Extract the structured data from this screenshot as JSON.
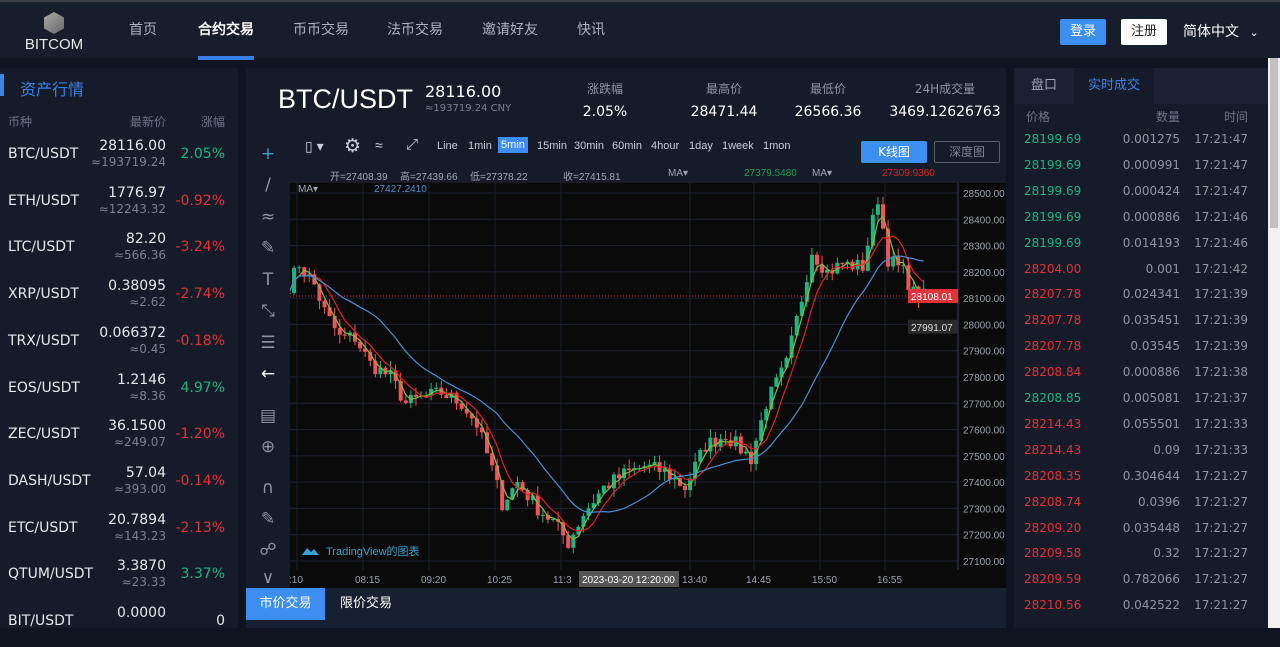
{
  "header": {
    "logo": "BITCOM",
    "nav": [
      "首页",
      "合约交易",
      "币币交易",
      "法币交易",
      "邀请好友",
      "快讯"
    ],
    "active_nav": 1,
    "login": "登录",
    "register": "注册",
    "language": "简体中文"
  },
  "left": {
    "title": "资产行情",
    "cols": [
      "币种",
      "最新价",
      "涨幅"
    ],
    "rows": [
      {
        "sym": "BTC/USDT",
        "price": "28116.00",
        "cny": "≈193719.24",
        "chg": "2.05%",
        "dir": "up"
      },
      {
        "sym": "ETH/USDT",
        "price": "1776.97",
        "cny": "≈12243.32",
        "chg": "-0.92%",
        "dir": "dn"
      },
      {
        "sym": "LTC/USDT",
        "price": "82.20",
        "cny": "≈566.36",
        "chg": "-3.24%",
        "dir": "dn"
      },
      {
        "sym": "XRP/USDT",
        "price": "0.38095",
        "cny": "≈2.62",
        "chg": "-2.74%",
        "dir": "dn"
      },
      {
        "sym": "TRX/USDT",
        "price": "0.066372",
        "cny": "≈0.45",
        "chg": "-0.18%",
        "dir": "dn"
      },
      {
        "sym": "EOS/USDT",
        "price": "1.2146",
        "cny": "≈8.36",
        "chg": "4.97%",
        "dir": "up"
      },
      {
        "sym": "ZEC/USDT",
        "price": "36.1500",
        "cny": "≈249.07",
        "chg": "-1.20%",
        "dir": "dn"
      },
      {
        "sym": "DASH/USDT",
        "price": "57.04",
        "cny": "≈393.00",
        "chg": "-0.14%",
        "dir": "dn"
      },
      {
        "sym": "ETC/USDT",
        "price": "20.7894",
        "cny": "≈143.23",
        "chg": "-2.13%",
        "dir": "dn"
      },
      {
        "sym": "QTUM/USDT",
        "price": "3.3870",
        "cny": "≈23.33",
        "chg": "3.37%",
        "dir": "up"
      },
      {
        "sym": "BIT/USDT",
        "price": "0.0000",
        "cny": "",
        "chg": "0",
        "dir": "none"
      }
    ]
  },
  "ticker": {
    "symbol": "BTC/USDT",
    "price": "28116.00",
    "cny": "≈193719.24 CNY",
    "stats": [
      {
        "label": "涨跌幅",
        "value": "2.05%"
      },
      {
        "label": "最高价",
        "value": "28471.44"
      },
      {
        "label": "最低价",
        "value": "26566.36"
      },
      {
        "label": "24H成交量",
        "value": "3469.12626763"
      }
    ]
  },
  "toolbar": {
    "intervals": [
      "Line",
      "1min",
      "5min",
      "15min",
      "30min",
      "60min",
      "4hour",
      "1day",
      "1week",
      "1mon"
    ],
    "selected": "5min",
    "kline": "K线图",
    "depth": "深度图"
  },
  "legend": {
    "open": "开=27408.39",
    "high": "高=27439.66",
    "low": "低=27378.22",
    "close": "收=27415.81",
    "ma": "MA▾",
    "ma1": "27379.5480",
    "ma2": "27309.9360",
    "ma3": "27427.2410"
  },
  "chart_data": {
    "type": "candlestick",
    "interval": "5min",
    "ylim": [
      27050,
      28550
    ],
    "yticks": [
      "28500.00",
      "28400.00",
      "28300.00",
      "28200.00",
      "28100.00",
      "28000.00",
      "27900.00",
      "27800.00",
      "27700.00",
      "27600.00",
      "27500.00",
      "27400.00",
      "27300.00",
      "27200.00",
      "27100.00"
    ],
    "xticks": [
      ":10",
      "08:15",
      "09:20",
      "10:25",
      "11:3",
      "13:40",
      "14:45",
      "15:50",
      "16:55"
    ],
    "crosshair_time": "2023-03-20 12:20:00",
    "last_price": "28108.01",
    "crosshair_price": "27991.07",
    "watermark": "TradingView的图表",
    "close_path": [
      [
        "07:10",
        28150
      ],
      [
        "07:20",
        28230
      ],
      [
        "07:35",
        28150
      ],
      [
        "07:45",
        28050
      ],
      [
        "08:00",
        27950
      ],
      [
        "08:15",
        27950
      ],
      [
        "08:30",
        27850
      ],
      [
        "08:50",
        27800
      ],
      [
        "09:05",
        27700
      ],
      [
        "09:20",
        27720
      ],
      [
        "09:40",
        27740
      ],
      [
        "10:00",
        27700
      ],
      [
        "10:15",
        27620
      ],
      [
        "10:30",
        27450
      ],
      [
        "10:40",
        27320
      ],
      [
        "10:55",
        27400
      ],
      [
        "11:15",
        27300
      ],
      [
        "11:30",
        27250
      ],
      [
        "11:45",
        27170
      ],
      [
        "12:00",
        27280
      ],
      [
        "12:20",
        27380
      ],
      [
        "12:40",
        27430
      ],
      [
        "13:00",
        27460
      ],
      [
        "13:20",
        27440
      ],
      [
        "13:40",
        27380
      ],
      [
        "14:00",
        27540
      ],
      [
        "14:20",
        27580
      ],
      [
        "14:45",
        27490
      ],
      [
        "15:00",
        27700
      ],
      [
        "15:20",
        27850
      ],
      [
        "15:35",
        28100
      ],
      [
        "15:45",
        28280
      ],
      [
        "16:00",
        28200
      ],
      [
        "16:15",
        28230
      ],
      [
        "16:35",
        28220
      ],
      [
        "16:50",
        28480
      ],
      [
        "17:00",
        28250
      ],
      [
        "17:15",
        28200
      ],
      [
        "17:25",
        28120
      ],
      [
        "17:35",
        28108
      ]
    ],
    "colors": {
      "up": "#1fb57f",
      "down": "#f05359",
      "ma_fast": "#8ab83a",
      "ma_mid": "#e0202a",
      "ma_slow": "#4a8fd0"
    }
  },
  "bottom_tabs": [
    "市价交易",
    "限价交易"
  ],
  "right": {
    "tabs": [
      "盘口",
      "实时成交"
    ],
    "cols": [
      "价格",
      "数量",
      "时间"
    ],
    "trades": [
      [
        "28199.69",
        "0.001275",
        "17:21:47",
        "up"
      ],
      [
        "28199.69",
        "0.000991",
        "17:21:47",
        "up"
      ],
      [
        "28199.69",
        "0.000424",
        "17:21:47",
        "up"
      ],
      [
        "28199.69",
        "0.000886",
        "17:21:46",
        "up"
      ],
      [
        "28199.69",
        "0.014193",
        "17:21:46",
        "up"
      ],
      [
        "28204.00",
        "0.001",
        "17:21:42",
        "dn"
      ],
      [
        "28207.78",
        "0.024341",
        "17:21:39",
        "dn"
      ],
      [
        "28207.78",
        "0.035451",
        "17:21:39",
        "dn"
      ],
      [
        "28207.78",
        "0.03545",
        "17:21:39",
        "dn"
      ],
      [
        "28208.84",
        "0.000886",
        "17:21:38",
        "dn"
      ],
      [
        "28208.85",
        "0.005081",
        "17:21:37",
        "up"
      ],
      [
        "28214.43",
        "0.055501",
        "17:21:33",
        "dn"
      ],
      [
        "28214.43",
        "0.09",
        "17:21:33",
        "dn"
      ],
      [
        "28208.35",
        "0.304644",
        "17:21:27",
        "dn"
      ],
      [
        "28208.74",
        "0.0396",
        "17:21:27",
        "dn"
      ],
      [
        "28209.20",
        "0.035448",
        "17:21:27",
        "dn"
      ],
      [
        "28209.58",
        "0.32",
        "17:21:27",
        "dn"
      ],
      [
        "28209.59",
        "0.782066",
        "17:21:27",
        "dn"
      ],
      [
        "28210.56",
        "0.042522",
        "17:21:27",
        "dn"
      ]
    ]
  }
}
